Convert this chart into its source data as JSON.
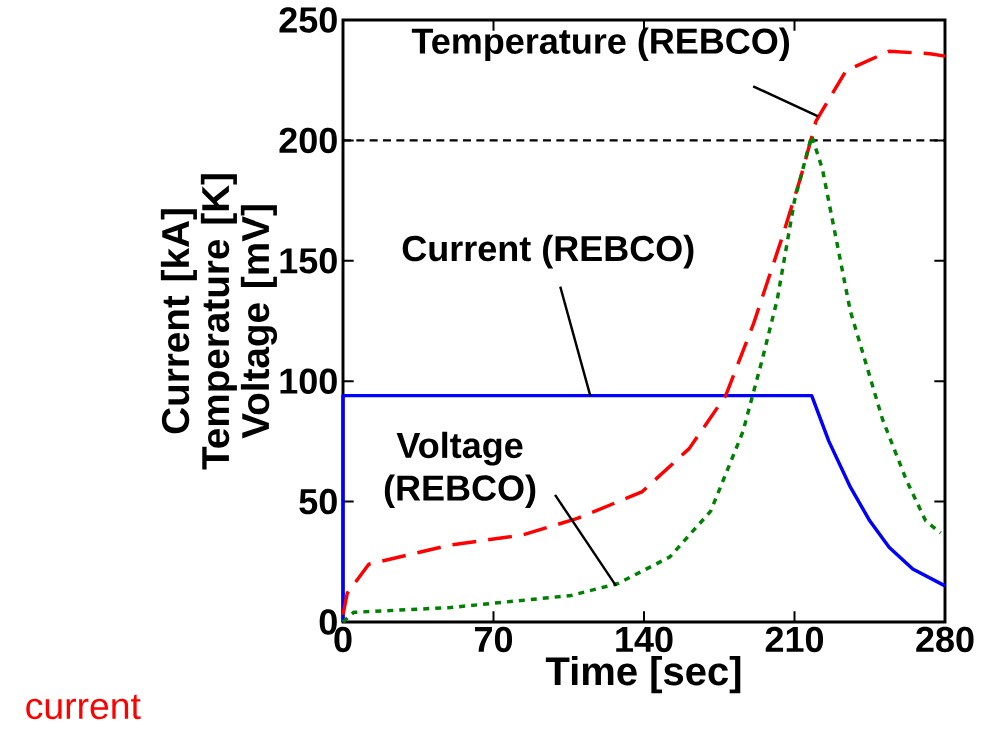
{
  "chart_data": {
    "type": "line",
    "xlabel": "Time [sec]",
    "ylabel": "Current [kA] Temperature [K] Voltage [mV]",
    "xlim": [
      0,
      280
    ],
    "ylim": [
      0,
      250
    ],
    "xticks": [
      0,
      70,
      140,
      210,
      280
    ],
    "yticks": [
      0,
      50,
      100,
      150,
      200,
      250
    ],
    "grid": false,
    "marker": "none",
    "series": [
      {
        "color": "#0000ff",
        "line_style": "solid",
        "x": [
          0,
          0,
          218,
          226,
          236,
          245,
          254,
          265,
          280
        ],
        "values": [
          0,
          94,
          94,
          75,
          56,
          42,
          31,
          22,
          15
        ]
      },
      {
        "color": "#ff0000",
        "line_style": "dashed",
        "x": [
          0,
          2,
          12,
          50,
          83,
          109,
          139,
          161,
          178,
          191,
          204,
          213,
          220,
          234,
          254,
          273,
          280
        ],
        "values": [
          3,
          12,
          24,
          32,
          36,
          43,
          54,
          72,
          94,
          124,
          159,
          185,
          208,
          229,
          237,
          236,
          235
        ]
      },
      {
        "color": "#008000",
        "line_style": "dotted",
        "x": [
          0,
          5,
          50,
          106,
          128,
          152,
          171,
          186,
          195,
          202,
          210,
          218,
          223,
          236,
          251,
          262,
          271,
          278
        ],
        "values": [
          0,
          4,
          6,
          11,
          16,
          27,
          46,
          79,
          109,
          134,
          175,
          202,
          188,
          129,
          84,
          59,
          42,
          37
        ]
      }
    ],
    "ref_lines": [
      {
        "axis": "y",
        "value": 200,
        "color": "#000000",
        "line_style": "dashed"
      }
    ],
    "annotations": [
      {
        "text": "Temperature (REBCO)",
        "x": 221,
        "y": 210
      },
      {
        "text": "Current (REBCO)",
        "x": 115,
        "y": 94
      },
      {
        "text": "Voltage (REBCO)",
        "x": 127,
        "y": 15
      },
      "current"
    ]
  }
}
